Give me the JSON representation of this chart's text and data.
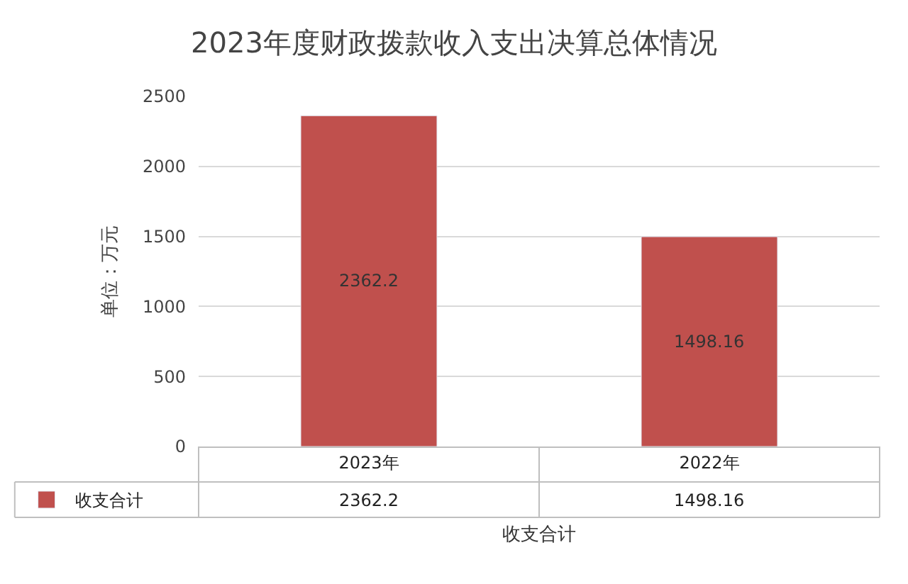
{
  "chart_data": {
    "type": "bar",
    "title": "2023年度财政拨款收入支出决算总体情况",
    "xlabel": "收支合计",
    "ylabel": "单位：万元",
    "categories": [
      "2023年",
      "2022年"
    ],
    "series": [
      {
        "name": "收支合计",
        "color": "#c0504d",
        "values": [
          2362.2,
          1498.16
        ]
      }
    ],
    "annotations": [
      "2362.2",
      "1498.16"
    ],
    "ylim": [
      0,
      2500
    ],
    "yticks": [
      0,
      500,
      1000,
      1500,
      2000,
      2500
    ],
    "grid": "y",
    "data_labels": true,
    "legend": "bottom left"
  }
}
